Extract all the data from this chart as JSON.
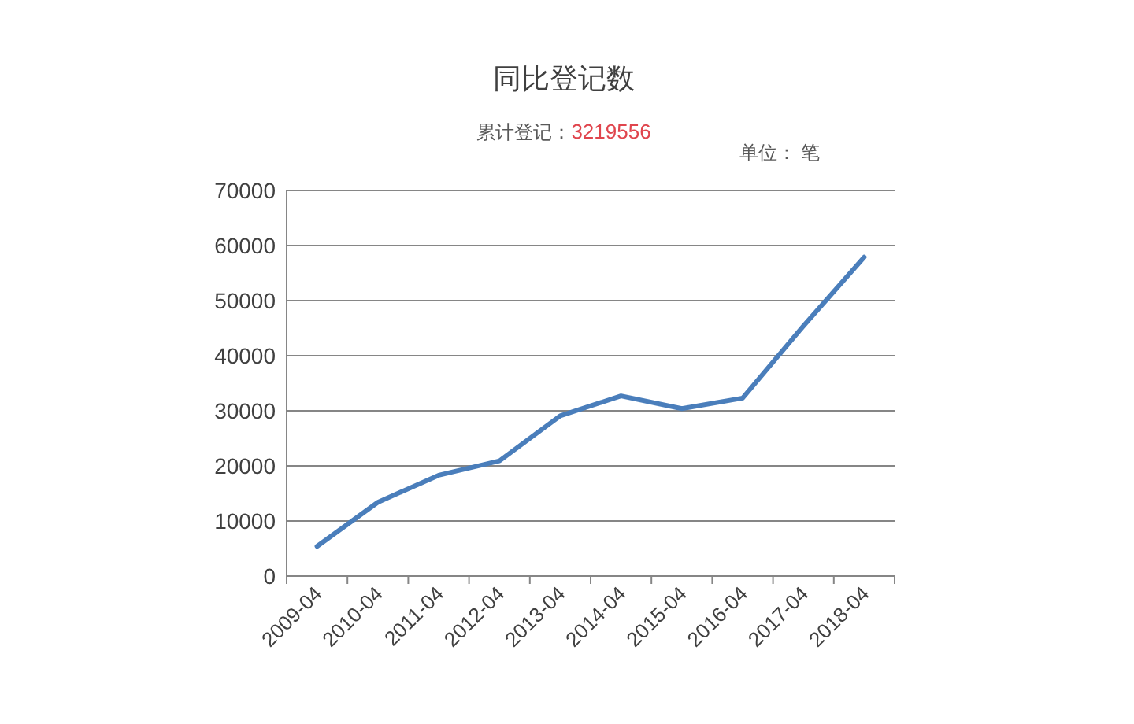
{
  "chart_data": {
    "type": "line",
    "title": "同比登记数",
    "subtitle": "累计登记：3219556",
    "annotations": [
      "单位： 笔"
    ],
    "categories": [
      "2009-04",
      "2010-04",
      "2011-04",
      "2012-04",
      "2013-04",
      "2014-04",
      "2015-04",
      "2016-04",
      "2017-04",
      "2018-04"
    ],
    "series": [
      {
        "color": "#4a7ebb",
        "values": [
          5400,
          13400,
          18300,
          20900,
          29100,
          32700,
          30400,
          32300,
          45400,
          57900
        ]
      }
    ],
    "ylim": [
      0,
      70000
    ],
    "yticks": [
      0,
      10000,
      20000,
      30000,
      40000,
      50000,
      60000,
      70000
    ],
    "grid": "y",
    "marker": "none",
    "line_style": "solid"
  }
}
